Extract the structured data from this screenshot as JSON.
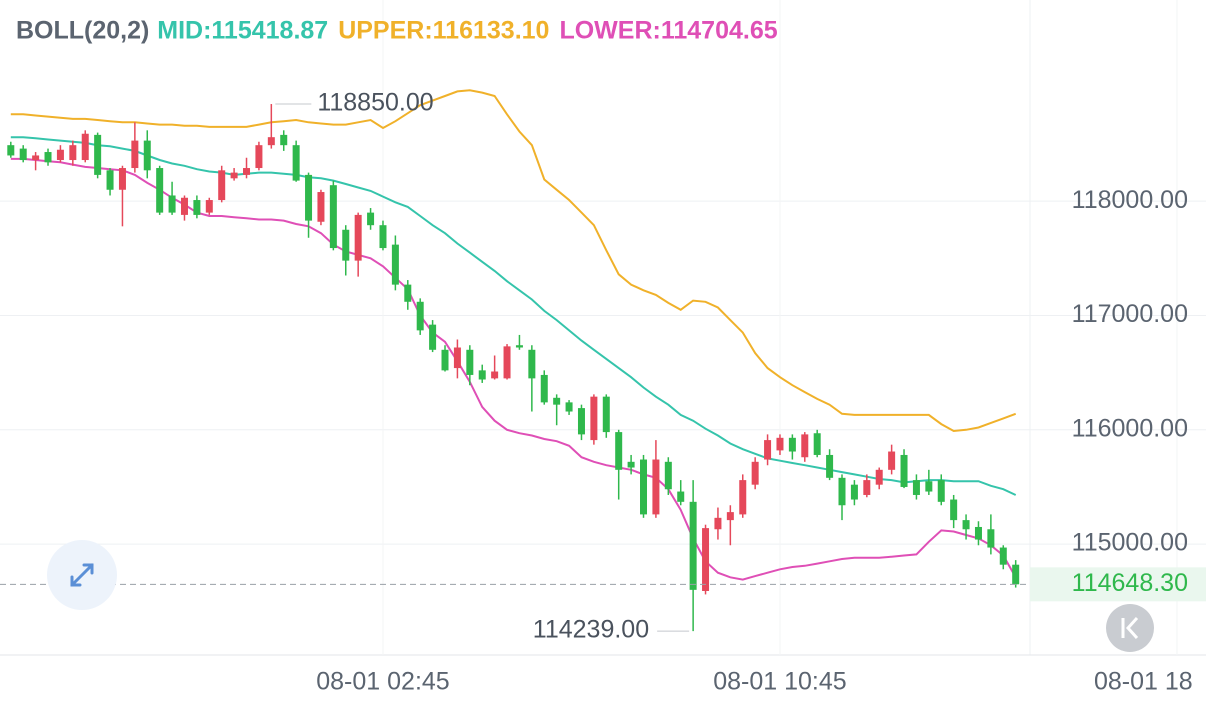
{
  "chart_data": {
    "type": "candlestick",
    "indicator_title": "BOLL(20,2)",
    "indicator_labels": [
      {
        "text": "MID:115418.87",
        "color": "#35c4ab"
      },
      {
        "text": "UPPER:116133.10",
        "color": "#f0b12a"
      },
      {
        "text": "LOWER:114704.65",
        "color": "#df4fb6"
      }
    ],
    "categories": [
      null,
      null,
      null,
      null,
      null,
      null,
      null,
      null,
      null,
      null,
      null,
      null,
      null,
      null,
      null,
      null,
      null,
      null,
      null,
      null,
      null,
      null,
      null,
      null,
      null,
      null,
      null,
      null,
      null,
      null,
      "08-01 02:45",
      null,
      null,
      null,
      null,
      null,
      null,
      null,
      null,
      null,
      null,
      null,
      null,
      null,
      null,
      null,
      null,
      null,
      null,
      null,
      null,
      null,
      null,
      null,
      null,
      null,
      null,
      null,
      null,
      null,
      null,
      null,
      "08-01 10:45",
      null,
      null,
      null,
      null,
      null,
      null,
      null,
      null,
      null,
      null,
      null,
      null,
      null,
      null,
      null,
      null,
      null,
      null,
      null,
      null,
      null,
      null,
      null,
      null,
      null,
      null,
      null,
      null,
      null,
      null,
      null,
      "08-01 18"
    ],
    "open": [
      118490,
      118460,
      118360,
      118430,
      118360,
      118360,
      118360,
      118580,
      118270,
      118100,
      118290,
      118530,
      118290,
      118050,
      117880,
      118010,
      117900,
      118010,
      118200,
      118230,
      118290,
      118490,
      118580,
      118490,
      118230,
      117820,
      118140,
      117750,
      117480,
      117900,
      117790,
      117620,
      117270,
      117120,
      116920,
      116700,
      116540,
      116700,
      116520,
      116450,
      116450,
      116740,
      116700,
      116480,
      116280,
      116240,
      116190,
      115910,
      116290,
      115980,
      115720,
      115740,
      115260,
      115720,
      115460,
      115370,
      114590,
      115130,
      115210,
      115260,
      115520,
      115740,
      115820,
      115930,
      115760,
      115970,
      115780,
      115580,
      115520,
      115430,
      115520,
      115650,
      115780,
      115560,
      115550,
      115560,
      115390,
      115210,
      115150,
      115130,
      114970,
      114820,
      null,
      null,
      null,
      null,
      null,
      null,
      null,
      null,
      null,
      null,
      null,
      null,
      null
    ],
    "high": [
      118520,
      118490,
      118430,
      118460,
      118490,
      118530,
      118620,
      118600,
      118290,
      118310,
      118690,
      118620,
      118310,
      118170,
      118050,
      118050,
      118030,
      118310,
      118290,
      118380,
      118520,
      118850,
      118620,
      118530,
      118250,
      118100,
      118180,
      117790,
      117900,
      117940,
      117830,
      117700,
      117310,
      117150,
      116960,
      116740,
      116790,
      116740,
      116570,
      116650,
      116750,
      116830,
      116740,
      116520,
      116310,
      116260,
      116220,
      116310,
      116310,
      116000,
      115780,
      115780,
      115910,
      115760,
      115560,
      115560,
      115170,
      115320,
      115340,
      115610,
      115760,
      115960,
      115960,
      115960,
      115980,
      116000,
      115830,
      115610,
      115560,
      115610,
      115670,
      115870,
      115830,
      115610,
      115650,
      115610,
      115430,
      115260,
      115200,
      115260,
      114990,
      114860,
      null,
      null,
      null,
      null,
      null,
      null,
      null,
      null,
      null,
      null,
      null,
      null,
      null
    ],
    "low": [
      118380,
      118340,
      118270,
      118310,
      118340,
      118310,
      118340,
      118200,
      118050,
      117780,
      118250,
      118200,
      117880,
      117880,
      117830,
      117850,
      117880,
      117990,
      118180,
      118200,
      118270,
      118460,
      118440,
      118170,
      117680,
      117790,
      117570,
      117350,
      117340,
      117750,
      117570,
      117220,
      117050,
      116830,
      116680,
      116510,
      116450,
      116390,
      116410,
      116440,
      116440,
      116700,
      116160,
      116220,
      116040,
      116130,
      115910,
      115870,
      115930,
      115390,
      115610,
      115230,
      115230,
      115430,
      115340,
      114239,
      114560,
      115040,
      114990,
      115230,
      115480,
      115690,
      115780,
      115740,
      115720,
      115760,
      115560,
      115210,
      115340,
      115410,
      115480,
      115610,
      115490,
      115390,
      115430,
      115340,
      115140,
      115040,
      114990,
      114910,
      114780,
      114620,
      null,
      null,
      null,
      null,
      null,
      null,
      null,
      null,
      null,
      null,
      null,
      null,
      null
    ],
    "close": [
      118400,
      118360,
      118400,
      118340,
      118450,
      118490,
      118590,
      118230,
      118100,
      118290,
      118530,
      118270,
      117900,
      117900,
      118030,
      117880,
      118010,
      118270,
      118250,
      118290,
      118490,
      118560,
      118490,
      118180,
      117830,
      118080,
      117590,
      117480,
      117880,
      117790,
      117590,
      117270,
      117120,
      116870,
      116700,
      116520,
      116720,
      116480,
      116440,
      116510,
      116730,
      116720,
      116450,
      116240,
      116220,
      116160,
      115960,
      116290,
      115980,
      115650,
      115670,
      115260,
      115740,
      115480,
      115370,
      114600,
      115140,
      115230,
      115280,
      115560,
      115720,
      115910,
      115930,
      115810,
      115960,
      115780,
      115580,
      115340,
      115390,
      115560,
      115650,
      115810,
      115500,
      115430,
      115460,
      115370,
      115210,
      115130,
      115040,
      114970,
      114820,
      114648.3,
      null,
      null,
      null,
      null,
      null,
      null,
      null,
      null,
      null,
      null,
      null,
      null,
      null
    ],
    "up_color": "#e5485a",
    "down_color": "#2fb84c",
    "lines": [
      {
        "name": "UPPER",
        "color": "#f0b12a",
        "values": [
          118760,
          118760,
          118750,
          118740,
          118730,
          118720,
          118720,
          118710,
          118700,
          118690,
          118690,
          118680,
          118670,
          118670,
          118660,
          118660,
          118650,
          118650,
          118650,
          118650,
          118670,
          118690,
          118700,
          118710,
          118690,
          118680,
          118670,
          118670,
          118690,
          118710,
          118640,
          118700,
          118770,
          118840,
          118880,
          118920,
          118960,
          118970,
          118950,
          118920,
          118760,
          118610,
          118490,
          118190,
          118100,
          118010,
          117900,
          117790,
          117570,
          117360,
          117270,
          117220,
          117180,
          117110,
          117050,
          117130,
          117120,
          117070,
          116960,
          116850,
          116670,
          116540,
          116460,
          116390,
          116330,
          116270,
          116220,
          116140,
          116130,
          116130,
          116130,
          116130,
          116130,
          116130,
          116130,
          116050,
          115990,
          116000,
          116020,
          116060,
          116100,
          116140,
          null,
          null,
          null,
          null,
          null,
          null,
          null,
          null,
          null,
          null,
          null,
          null,
          null
        ]
      },
      {
        "name": "MID",
        "color": "#35c4ab",
        "values": [
          118560,
          118560,
          118550,
          118540,
          118530,
          118520,
          118510,
          118490,
          118480,
          118460,
          118440,
          118400,
          118360,
          118330,
          118310,
          118280,
          118260,
          118250,
          118230,
          118240,
          118250,
          118250,
          118240,
          118230,
          118210,
          118200,
          118180,
          118150,
          118120,
          118090,
          118040,
          117990,
          117950,
          117870,
          117790,
          117720,
          117630,
          117550,
          117470,
          117390,
          117300,
          117220,
          117140,
          117040,
          116960,
          116870,
          116780,
          116700,
          116620,
          116540,
          116460,
          116370,
          116290,
          116220,
          116130,
          116080,
          116010,
          115950,
          115880,
          115830,
          115790,
          115750,
          115730,
          115710,
          115690,
          115670,
          115650,
          115630,
          115610,
          115590,
          115570,
          115560,
          115540,
          115550,
          115560,
          115560,
          115550,
          115550,
          115550,
          115510,
          115480,
          115430,
          null,
          null,
          null,
          null,
          null,
          null,
          null,
          null,
          null,
          null,
          null,
          null,
          null
        ]
      },
      {
        "name": "LOWER",
        "color": "#df4fb6",
        "values": [
          118370,
          118370,
          118360,
          118350,
          118340,
          118320,
          118300,
          118290,
          118280,
          118270,
          118230,
          118160,
          118100,
          118030,
          117970,
          117900,
          117870,
          117870,
          117860,
          117850,
          117840,
          117840,
          117830,
          117800,
          117780,
          117720,
          117620,
          117560,
          117530,
          117500,
          117430,
          117330,
          117230,
          117000,
          116850,
          116770,
          116600,
          116420,
          116200,
          116080,
          116000,
          115970,
          115950,
          115920,
          115900,
          115860,
          115760,
          115720,
          115690,
          115670,
          115650,
          115610,
          115580,
          115480,
          115300,
          115050,
          114850,
          114750,
          114710,
          114690,
          114720,
          114750,
          114780,
          114800,
          114810,
          114830,
          114850,
          114870,
          114880,
          114880,
          114880,
          114890,
          114900,
          114910,
          115020,
          115120,
          115110,
          115080,
          115050,
          114990,
          114900,
          114710,
          null,
          null,
          null,
          null,
          null,
          null,
          null,
          null,
          null,
          null,
          null,
          null,
          null
        ]
      }
    ],
    "extremes": [
      {
        "value": 118850,
        "label": "118850.00"
      },
      {
        "value": 114239,
        "label": "114239.00"
      }
    ],
    "last_price": {
      "value": 114648.3,
      "label": "114648.30"
    },
    "ylim": [
      114030,
      119760
    ],
    "yticks": [
      {
        "value": 115000,
        "label": "115000.00"
      },
      {
        "value": 116000,
        "label": "116000.00"
      },
      {
        "value": 117000,
        "label": "117000.00"
      },
      {
        "value": 118000,
        "label": "118000.00"
      }
    ],
    "grid": true
  }
}
